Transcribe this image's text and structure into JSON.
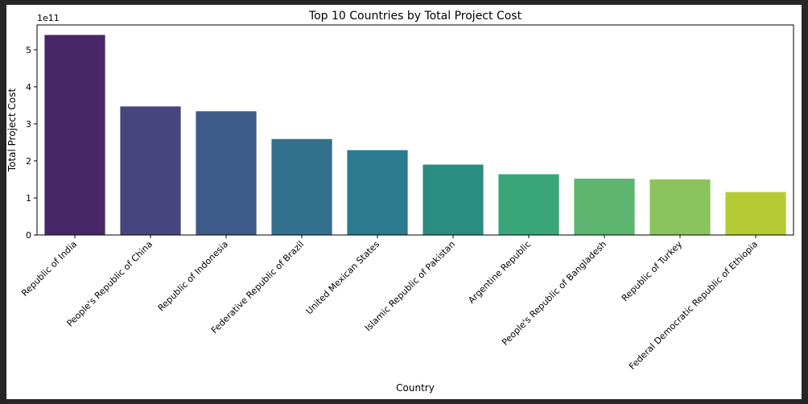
{
  "chart_data": {
    "type": "bar",
    "title": "Top 10 Countries by Total Project Cost",
    "xlabel": "Country",
    "ylabel": "Total Project Cost",
    "offset_label": "1e11",
    "categories": [
      "Republic of India",
      "People's Republic of China",
      "Republic of Indonesia",
      "Federative Republic of Brazil",
      "United Mexican States",
      "Islamic Republic of Pakistan",
      "Argentine Republic",
      "People's Republic of Bangladesh",
      "Republic of Turkey",
      "Federal Democratic Republic of Ethiopia"
    ],
    "values": [
      540000000000.0,
      347000000000.0,
      334000000000.0,
      259000000000.0,
      229000000000.0,
      190000000000.0,
      164000000000.0,
      152000000000.0,
      150000000000.0,
      116000000000.0
    ],
    "ylim": [
      0,
      567000000000.0
    ],
    "yticks": [
      0,
      100000000000.0,
      200000000000.0,
      300000000000.0,
      400000000000.0,
      500000000000.0
    ],
    "ytick_labels": [
      "0",
      "1",
      "2",
      "3",
      "4",
      "5"
    ],
    "colors": [
      "#482668",
      "#47457e",
      "#3e5a89",
      "#33708d",
      "#2a7b8e",
      "#2b8d82",
      "#3ba57a",
      "#5db56f",
      "#8ac35b",
      "#b5cb35"
    ],
    "grid": false,
    "legend": "none"
  }
}
